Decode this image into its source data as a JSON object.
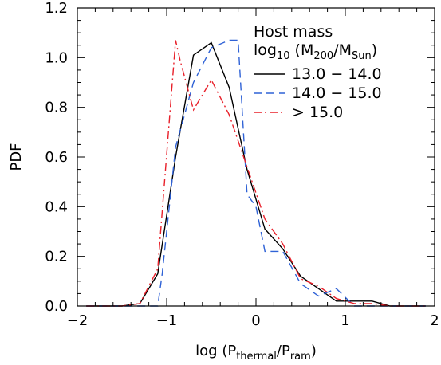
{
  "chart_data": {
    "type": "line",
    "xlabel": {
      "main": "log (P",
      "sub1": "thermal",
      "mid": "/P",
      "sub2": "ram",
      "end": ")"
    },
    "ylabel": "PDF",
    "xlim": [
      -2,
      2
    ],
    "ylim": [
      0,
      1.2
    ],
    "x_ticks": [
      -2,
      -1,
      0,
      1,
      2
    ],
    "x_tick_labels": [
      "−2",
      "−1",
      "0",
      "1",
      "2"
    ],
    "y_ticks": [
      0,
      0.2,
      0.4,
      0.6,
      0.8,
      1.0,
      1.2
    ],
    "y_tick_labels": [
      "0.0",
      "0.2",
      "0.4",
      "0.6",
      "0.8",
      "1.0",
      "1.2"
    ],
    "legend": {
      "title_line1": "Host mass",
      "title_line2": {
        "pre": "log",
        "sub": "10",
        "mid1": " (M",
        "sub2": "200",
        "mid2": "/M",
        "sub3": "Sun",
        "end": ")"
      },
      "placement": "top-right"
    },
    "series": [
      {
        "name": "13.0 − 14.0",
        "color": "#000000",
        "dash": "solid",
        "x": [
          -1.9,
          -1.5,
          -1.3,
          -1.1,
          -0.9,
          -0.7,
          -0.5,
          -0.3,
          -0.1,
          0.1,
          0.3,
          0.5,
          0.7,
          0.9,
          1.1,
          1.3,
          1.5,
          1.7,
          1.9
        ],
        "y": [
          0.0,
          0.0,
          0.01,
          0.13,
          0.6,
          1.01,
          1.06,
          0.88,
          0.55,
          0.31,
          0.23,
          0.12,
          0.07,
          0.02,
          0.02,
          0.02,
          0.0,
          0.0,
          0.0
        ]
      },
      {
        "name": "14.0 − 15.0",
        "color": "#2f62d6",
        "dash": "dashed",
        "x": [
          -1.9,
          -1.5,
          -1.3,
          -1.1,
          -1.05,
          -0.9,
          -0.7,
          -0.5,
          -0.3,
          -0.2,
          -0.1,
          0.0,
          0.1,
          0.3,
          0.5,
          0.7,
          0.9,
          1.1,
          1.3,
          1.5,
          1.7,
          1.9
        ],
        "y": [
          0.0,
          0.0,
          0.0,
          0.0,
          0.13,
          0.64,
          0.9,
          1.04,
          1.07,
          1.07,
          0.45,
          0.4,
          0.22,
          0.22,
          0.09,
          0.04,
          0.07,
          0.0,
          0.0,
          0.0,
          0.0,
          0.0
        ]
      },
      {
        "name": "> 15.0",
        "color": "#e8202a",
        "dash": "dashdot",
        "x": [
          -1.9,
          -1.5,
          -1.3,
          -1.1,
          -0.9,
          -0.85,
          -0.7,
          -0.5,
          -0.3,
          -0.1,
          0.1,
          0.3,
          0.5,
          0.7,
          0.9,
          1.1,
          1.3,
          1.5,
          1.7,
          1.9
        ],
        "y": [
          0.0,
          0.0,
          0.01,
          0.15,
          1.07,
          0.99,
          0.79,
          0.91,
          0.77,
          0.56,
          0.35,
          0.25,
          0.11,
          0.08,
          0.03,
          0.01,
          0.01,
          0.0,
          0.0,
          0.0
        ]
      }
    ]
  }
}
